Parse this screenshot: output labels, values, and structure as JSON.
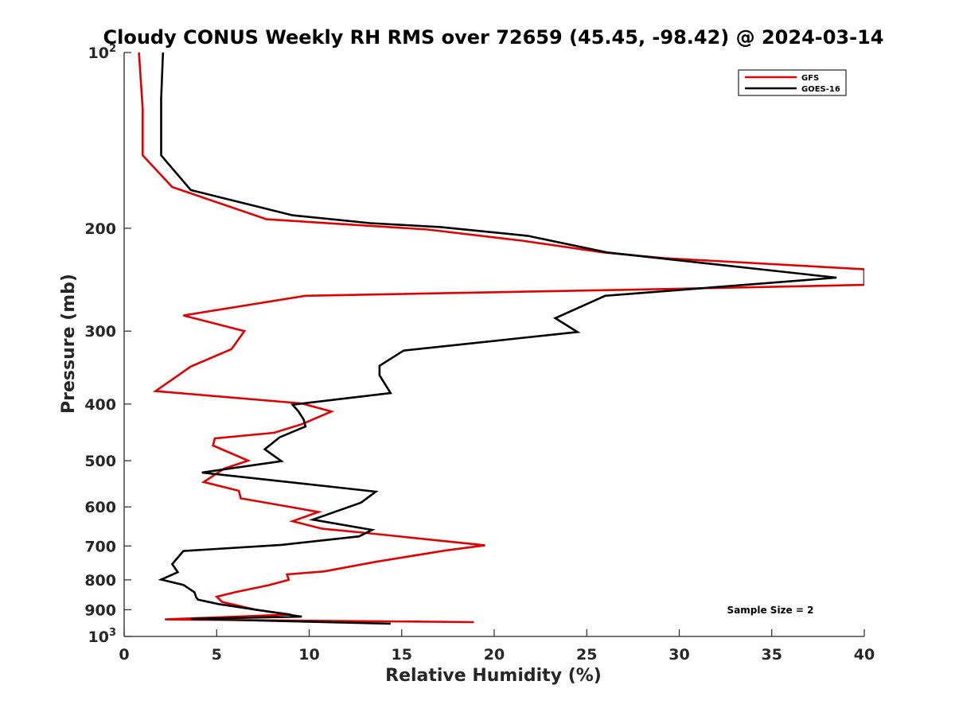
{
  "chart_data": {
    "type": "line",
    "title": "Cloudy CONUS Weekly RH RMS over 72659 (45.45, -98.42) @ 2024-03-14",
    "xlabel": "Relative Humidity (%)",
    "ylabel": "Pressure (mb)",
    "xlim": [
      0,
      40
    ],
    "ylim": [
      100,
      1000
    ],
    "y_scale": "log",
    "y_reversed": true,
    "grid": false,
    "legend_position": "top-right",
    "x_ticks": [
      "0",
      "5",
      "10",
      "15",
      "20",
      "25",
      "30",
      "35",
      "40"
    ],
    "y_ticks": [
      {
        "value": 100,
        "base": "10",
        "exp": "2"
      },
      {
        "value": 200,
        "label": "200"
      },
      {
        "value": 300,
        "label": "300"
      },
      {
        "value": 400,
        "label": "400"
      },
      {
        "value": 500,
        "label": "500"
      },
      {
        "value": 600,
        "label": "600"
      },
      {
        "value": 700,
        "label": "700"
      },
      {
        "value": 800,
        "label": "800"
      },
      {
        "value": 900,
        "label": "900"
      },
      {
        "value": 1000,
        "base": "10",
        "exp": "3"
      }
    ],
    "series": [
      {
        "name": "GFS",
        "color": "#e00000",
        "points": [
          [
            0.8,
            100
          ],
          [
            1.0,
            125
          ],
          [
            1.0,
            150
          ],
          [
            2.6,
            170
          ],
          [
            7.7,
            193
          ],
          [
            16.4,
            201
          ],
          [
            21.5,
            210
          ],
          [
            25.9,
            220
          ],
          [
            29.2,
            225
          ],
          [
            40.0,
            235
          ],
          [
            40.0,
            250
          ],
          [
            26.8,
            255
          ],
          [
            9.8,
            261
          ],
          [
            3.2,
            282
          ],
          [
            6.5,
            300
          ],
          [
            5.8,
            322
          ],
          [
            3.6,
            345
          ],
          [
            1.7,
            380
          ],
          [
            9.6,
            399
          ],
          [
            11.2,
            412
          ],
          [
            9.6,
            433
          ],
          [
            8.1,
            448
          ],
          [
            4.9,
            458
          ],
          [
            4.8,
            471
          ],
          [
            6.7,
            500
          ],
          [
            5.4,
            516
          ],
          [
            4.3,
            544
          ],
          [
            6.2,
            563
          ],
          [
            6.3,
            580
          ],
          [
            8.3,
            595
          ],
          [
            10.5,
            612
          ],
          [
            9.1,
            635
          ],
          [
            10.7,
            654
          ],
          [
            12.9,
            664
          ],
          [
            19.5,
            698
          ],
          [
            17.3,
            713
          ],
          [
            13.6,
            745
          ],
          [
            10.8,
            774
          ],
          [
            8.8,
            783
          ],
          [
            8.9,
            800
          ],
          [
            7.8,
            817
          ],
          [
            6.0,
            840
          ],
          [
            5.0,
            855
          ],
          [
            5.3,
            873
          ],
          [
            7.1,
            900
          ],
          [
            9.0,
            917
          ],
          [
            2.2,
            935
          ],
          [
            18.9,
            945
          ]
        ]
      },
      {
        "name": "GOES-16",
        "color": "#000000",
        "points": [
          [
            2.1,
            100
          ],
          [
            2.0,
            120
          ],
          [
            2.0,
            150
          ],
          [
            3.6,
            172
          ],
          [
            9.1,
            190
          ],
          [
            13.3,
            196
          ],
          [
            17.1,
            199
          ],
          [
            21.8,
            206
          ],
          [
            26.1,
            220
          ],
          [
            38.5,
            243
          ],
          [
            26.0,
            261
          ],
          [
            23.3,
            285
          ],
          [
            24.5,
            301
          ],
          [
            15.1,
            324
          ],
          [
            13.8,
            344
          ],
          [
            13.8,
            357
          ],
          [
            14.4,
            383
          ],
          [
            9.1,
            401
          ],
          [
            9.4,
            411
          ],
          [
            9.7,
            425
          ],
          [
            9.8,
            437
          ],
          [
            8.4,
            456
          ],
          [
            7.6,
            478
          ],
          [
            8.5,
            501
          ],
          [
            4.2,
            524
          ],
          [
            13.6,
            565
          ],
          [
            12.8,
            590
          ],
          [
            10.2,
            631
          ],
          [
            13.4,
            657
          ],
          [
            12.7,
            674
          ],
          [
            8.5,
            697
          ],
          [
            3.2,
            714
          ],
          [
            2.6,
            752
          ],
          [
            2.9,
            776
          ],
          [
            2.0,
            799
          ],
          [
            3.2,
            816
          ],
          [
            3.8,
            840
          ],
          [
            3.9,
            858
          ],
          [
            4.0,
            865
          ],
          [
            5.1,
            880
          ],
          [
            9.6,
            925
          ],
          [
            3.6,
            933
          ],
          [
            14.4,
            951
          ]
        ]
      }
    ],
    "annotations": [
      {
        "text": "Sample Size = 2"
      }
    ]
  }
}
